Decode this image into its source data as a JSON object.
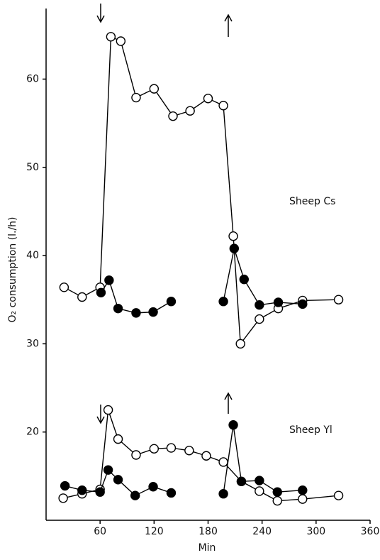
{
  "chart_data": {
    "type": "line",
    "xlabel": "Min",
    "ylabel": "O₂ consumption (l./h)",
    "annotations": [
      "Sheep Cs",
      "Sheep Yl"
    ],
    "xlim": [
      0,
      360
    ],
    "xticks": [
      60,
      120,
      180,
      240,
      300,
      360
    ],
    "ylim": [
      10,
      68
    ],
    "yticks": [
      20,
      30,
      40,
      50,
      60
    ],
    "grid": false,
    "series": [
      {
        "color": "#000",
        "marker_fill": "#fff",
        "x": [
          20,
          40,
          60,
          72,
          83,
          100,
          120,
          141,
          160,
          180,
          197,
          208,
          216,
          237,
          258,
          285,
          325
        ],
        "values": [
          36.4,
          35.3,
          36.4,
          64.8,
          64.3,
          57.9,
          58.9,
          55.8,
          56.4,
          57.8,
          57.0,
          42.2,
          30.0,
          32.8,
          34.0,
          34.9,
          35.0
        ]
      },
      {
        "color": "#000",
        "marker_fill": "#000",
        "x": [
          61,
          70,
          80,
          100,
          119,
          139,
          168,
          197,
          209,
          220,
          237,
          258,
          285
        ],
        "values": [
          35.8,
          37.2,
          34.0,
          33.5,
          33.6,
          34.8,
          null,
          34.8,
          40.8,
          37.3,
          34.4,
          34.7,
          34.5
        ]
      },
      {
        "color": "#000",
        "marker_fill": "#fff",
        "x": [
          19,
          40,
          60,
          69,
          80,
          100,
          120,
          139,
          159,
          178,
          197,
          217,
          237,
          257,
          285,
          325
        ],
        "values": [
          12.5,
          13.0,
          13.5,
          22.5,
          19.2,
          17.4,
          18.1,
          18.2,
          17.9,
          17.3,
          16.6,
          14.4,
          13.3,
          12.2,
          12.4,
          12.8
        ]
      },
      {
        "color": "#000",
        "marker_fill": "#000",
        "x": [
          21,
          40,
          60,
          69,
          80,
          99,
          119,
          139,
          168,
          197,
          208,
          217,
          237,
          257,
          285
        ],
        "values": [
          13.9,
          13.4,
          13.2,
          15.7,
          14.6,
          12.8,
          13.8,
          13.1,
          null,
          13.0,
          20.8,
          14.4,
          14.5,
          13.2,
          13.4
        ]
      }
    ]
  }
}
